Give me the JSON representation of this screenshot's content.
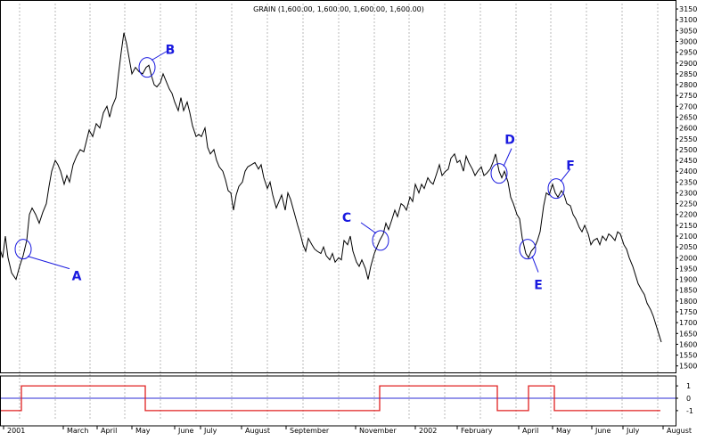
{
  "chart_data": [
    {
      "type": "line",
      "title": "GRAIN (1,600.00, 1,600.00, 1,600.00, 1,600.00)",
      "y_ticks": [
        1500,
        1550,
        1600,
        1650,
        1700,
        1750,
        1800,
        1850,
        1900,
        1950,
        2000,
        2050,
        2100,
        2150,
        2200,
        2250,
        2300,
        2350,
        2400,
        2450,
        2500,
        2550,
        2600,
        2650,
        2700,
        2750,
        2800,
        2850,
        2900,
        2950,
        3000,
        3050,
        3100,
        3150
      ],
      "ylim": [
        1470,
        3175
      ],
      "x_labels": [
        "2001",
        "March",
        "April",
        "May",
        "June",
        "July",
        "August",
        "September",
        "November",
        "2002",
        "February",
        "April",
        "May",
        "June",
        "July",
        "August"
      ],
      "grid": true,
      "series": [
        {
          "color": "#000000",
          "points": [
            [
              0.0,
              2040
            ],
            [
              3.0,
              2000
            ],
            [
              6.0,
              2100
            ],
            [
              9.0,
              2000
            ],
            [
              13.0,
              1930
            ],
            [
              18.0,
              1900
            ],
            [
              22.0,
              1960
            ],
            [
              26.0,
              2010
            ],
            [
              30.0,
              2080
            ],
            [
              33.0,
              2200
            ],
            [
              36.0,
              2230
            ],
            [
              40.0,
              2200
            ],
            [
              44.0,
              2160
            ],
            [
              48.0,
              2210
            ],
            [
              52.0,
              2250
            ],
            [
              55.0,
              2330
            ],
            [
              58.0,
              2400
            ],
            [
              62.0,
              2450
            ],
            [
              65.0,
              2430
            ],
            [
              68.0,
              2400
            ],
            [
              72.0,
              2340
            ],
            [
              75.0,
              2380
            ],
            [
              78.0,
              2350
            ],
            [
              82.0,
              2430
            ],
            [
              86.0,
              2470
            ],
            [
              90.0,
              2500
            ],
            [
              94.0,
              2490
            ],
            [
              97.0,
              2540
            ],
            [
              100.0,
              2590
            ],
            [
              104.0,
              2560
            ],
            [
              108.0,
              2620
            ],
            [
              112.0,
              2600
            ],
            [
              116.0,
              2670
            ],
            [
              120.0,
              2700
            ],
            [
              123.0,
              2650
            ],
            [
              126.0,
              2700
            ],
            [
              130.0,
              2740
            ],
            [
              133.0,
              2850
            ],
            [
              136.0,
              2950
            ],
            [
              139.0,
              3040
            ],
            [
              142.0,
              2990
            ],
            [
              145.0,
              2920
            ],
            [
              148.0,
              2850
            ],
            [
              152.0,
              2880
            ],
            [
              156.0,
              2860
            ],
            [
              160.0,
              2850
            ],
            [
              164.0,
              2880
            ],
            [
              167.0,
              2890
            ],
            [
              170.0,
              2840
            ],
            [
              173.0,
              2800
            ],
            [
              176.0,
              2790
            ],
            [
              180.0,
              2810
            ],
            [
              183.0,
              2850
            ],
            [
              186.0,
              2820
            ],
            [
              190.0,
              2780
            ],
            [
              193.0,
              2760
            ],
            [
              196.0,
              2720
            ],
            [
              200.0,
              2680
            ],
            [
              203.0,
              2740
            ],
            [
              206.0,
              2680
            ],
            [
              210.0,
              2720
            ],
            [
              213.0,
              2670
            ],
            [
              216.0,
              2610
            ],
            [
              220.0,
              2560
            ],
            [
              223.0,
              2570
            ],
            [
              226.0,
              2560
            ],
            [
              230.0,
              2600
            ],
            [
              233.0,
              2510
            ],
            [
              236.0,
              2480
            ],
            [
              240.0,
              2500
            ],
            [
              243.0,
              2450
            ],
            [
              246.0,
              2420
            ],
            [
              250.0,
              2400
            ],
            [
              253.0,
              2360
            ],
            [
              256.0,
              2310
            ],
            [
              259.0,
              2300
            ],
            [
              262.0,
              2220
            ],
            [
              265.0,
              2290
            ],
            [
              268.0,
              2330
            ],
            [
              272.0,
              2350
            ],
            [
              275.0,
              2400
            ],
            [
              278.0,
              2420
            ],
            [
              282.0,
              2430
            ],
            [
              286.0,
              2440
            ],
            [
              290.0,
              2410
            ],
            [
              293.0,
              2430
            ],
            [
              296.0,
              2370
            ],
            [
              300.0,
              2320
            ],
            [
              303.0,
              2350
            ],
            [
              306.0,
              2290
            ],
            [
              310.0,
              2230
            ],
            [
              313.0,
              2260
            ],
            [
              316.0,
              2290
            ],
            [
              320.0,
              2220
            ],
            [
              323.0,
              2300
            ],
            [
              326.0,
              2270
            ],
            [
              330.0,
              2210
            ],
            [
              334.0,
              2150
            ],
            [
              337.0,
              2110
            ],
            [
              340.0,
              2060
            ],
            [
              343.0,
              2030
            ],
            [
              346.0,
              2090
            ],
            [
              350.0,
              2060
            ],
            [
              353.0,
              2040
            ],
            [
              356.0,
              2030
            ],
            [
              360.0,
              2020
            ],
            [
              363.0,
              2050
            ],
            [
              366.0,
              2010
            ],
            [
              370.0,
              1990
            ],
            [
              373.0,
              2020
            ],
            [
              376.0,
              1980
            ],
            [
              380.0,
              2000
            ],
            [
              383.0,
              1990
            ],
            [
              386.0,
              2080
            ],
            [
              390.0,
              2060
            ],
            [
              393.0,
              2100
            ],
            [
              396.0,
              2030
            ],
            [
              400.0,
              1980
            ],
            [
              403.0,
              1960
            ],
            [
              406.0,
              1990
            ],
            [
              410.0,
              1950
            ],
            [
              413.0,
              1900
            ],
            [
              416.0,
              1960
            ],
            [
              420.0,
              2020
            ],
            [
              423.0,
              2050
            ],
            [
              426.0,
              2080
            ],
            [
              430.0,
              2110
            ],
            [
              433.0,
              2160
            ],
            [
              436.0,
              2130
            ],
            [
              440.0,
              2180
            ],
            [
              443.0,
              2220
            ],
            [
              446.0,
              2190
            ],
            [
              450.0,
              2250
            ],
            [
              453.0,
              2240
            ],
            [
              456.0,
              2220
            ],
            [
              460.0,
              2280
            ],
            [
              463.0,
              2260
            ],
            [
              466.0,
              2340
            ],
            [
              470.0,
              2300
            ],
            [
              473.0,
              2340
            ],
            [
              476.0,
              2320
            ],
            [
              480.0,
              2370
            ],
            [
              483.0,
              2350
            ],
            [
              486.0,
              2340
            ],
            [
              490.0,
              2390
            ],
            [
              493.0,
              2430
            ],
            [
              496.0,
              2380
            ],
            [
              500.0,
              2400
            ],
            [
              503.0,
              2410
            ],
            [
              506.0,
              2460
            ],
            [
              510.0,
              2480
            ],
            [
              513.0,
              2440
            ],
            [
              516.0,
              2450
            ],
            [
              520.0,
              2400
            ],
            [
              523.0,
              2470
            ],
            [
              526.0,
              2440
            ],
            [
              530.0,
              2410
            ],
            [
              533.0,
              2380
            ],
            [
              536.0,
              2400
            ],
            [
              540.0,
              2420
            ],
            [
              543.0,
              2380
            ],
            [
              546.0,
              2390
            ],
            [
              550.0,
              2410
            ],
            [
              553.0,
              2440
            ],
            [
              556.0,
              2480
            ],
            [
              560.0,
              2400
            ],
            [
              563.0,
              2370
            ],
            [
              566.0,
              2400
            ],
            [
              570.0,
              2350
            ],
            [
              573.0,
              2280
            ],
            [
              576.0,
              2250
            ],
            [
              580.0,
              2200
            ],
            [
              583.0,
              2180
            ],
            [
              586.0,
              2090
            ],
            [
              590.0,
              2020
            ],
            [
              593.0,
              2000
            ],
            [
              596.0,
              2030
            ],
            [
              600.0,
              2050
            ],
            [
              603.0,
              2080
            ],
            [
              606.0,
              2120
            ],
            [
              610.0,
              2240
            ],
            [
              613.0,
              2300
            ],
            [
              616.0,
              2290
            ],
            [
              620.0,
              2340
            ],
            [
              623.0,
              2300
            ],
            [
              626.0,
              2280
            ],
            [
              630.0,
              2310
            ],
            [
              633.0,
              2290
            ],
            [
              636.0,
              2250
            ],
            [
              640.0,
              2240
            ],
            [
              643.0,
              2200
            ],
            [
              646.0,
              2180
            ],
            [
              650.0,
              2140
            ],
            [
              653.0,
              2120
            ],
            [
              656.0,
              2150
            ],
            [
              660.0,
              2110
            ],
            [
              663.0,
              2060
            ],
            [
              666.0,
              2080
            ],
            [
              670.0,
              2090
            ],
            [
              673.0,
              2060
            ],
            [
              676.0,
              2100
            ],
            [
              680.0,
              2080
            ],
            [
              683.0,
              2110
            ],
            [
              686.0,
              2100
            ],
            [
              690.0,
              2080
            ],
            [
              693.0,
              2120
            ],
            [
              696.0,
              2110
            ],
            [
              700.0,
              2060
            ],
            [
              703.0,
              2040
            ],
            [
              706.0,
              2000
            ],
            [
              710.0,
              1960
            ],
            [
              713.0,
              1920
            ],
            [
              716.0,
              1880
            ],
            [
              720.0,
              1850
            ],
            [
              723.0,
              1830
            ],
            [
              726.0,
              1790
            ],
            [
              730.0,
              1760
            ],
            [
              733.0,
              1730
            ],
            [
              736.0,
              1690
            ],
            [
              739.0,
              1650
            ],
            [
              742.0,
              1610
            ]
          ]
        }
      ],
      "annotations": [
        {
          "label": "A",
          "color": "#1a1adf",
          "x": 26.0,
          "y": 2040
        },
        {
          "label": "B",
          "color": "#1a1adf",
          "x": 165.0,
          "y": 2880
        },
        {
          "label": "C",
          "color": "#1a1adf",
          "x": 427.0,
          "y": 2080
        },
        {
          "label": "D",
          "color": "#1a1adf",
          "x": 560.0,
          "y": 2390
        },
        {
          "label": "E",
          "color": "#1a1adf",
          "x": 592.0,
          "y": 2040
        },
        {
          "label": "F",
          "color": "#1a1adf",
          "x": 624.0,
          "y": 2320
        }
      ]
    },
    {
      "type": "line",
      "title": "",
      "y_ticks": [
        1,
        0,
        -1
      ],
      "ylim": [
        -1.8,
        1.8
      ],
      "grid": true,
      "series": [
        {
          "color": "#e02020",
          "points": [
            [
              0,
              -1
            ],
            [
              24,
              -1
            ],
            [
              24,
              1
            ],
            [
              163,
              1
            ],
            [
              163,
              -1
            ],
            [
              426,
              -1
            ],
            [
              426,
              1
            ],
            [
              558,
              1
            ],
            [
              558,
              -1
            ],
            [
              593,
              -1
            ],
            [
              593,
              1
            ],
            [
              622,
              1
            ],
            [
              622,
              -1
            ],
            [
              741,
              -1
            ]
          ]
        }
      ],
      "reference_line": {
        "y": 0,
        "color": "#2b2bd6"
      }
    }
  ]
}
